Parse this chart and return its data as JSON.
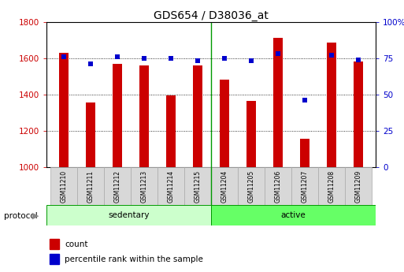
{
  "title": "GDS654 / D38036_at",
  "samples": [
    "GSM11210",
    "GSM11211",
    "GSM11212",
    "GSM11213",
    "GSM11214",
    "GSM11215",
    "GSM11204",
    "GSM11205",
    "GSM11206",
    "GSM11207",
    "GSM11208",
    "GSM11209"
  ],
  "counts": [
    1630,
    1355,
    1570,
    1560,
    1395,
    1560,
    1480,
    1365,
    1710,
    1155,
    1685,
    1580
  ],
  "percentile": [
    76,
    71,
    76,
    75,
    75,
    73,
    75,
    73,
    78,
    46,
    77,
    74
  ],
  "bar_color": "#cc0000",
  "dot_color": "#0000cc",
  "sedentary_color": "#ccffcc",
  "active_color": "#66ff66",
  "separator_color": "#009900",
  "ylim_left": [
    1000,
    1800
  ],
  "ylim_right": [
    0,
    100
  ],
  "yticks_left": [
    1000,
    1200,
    1400,
    1600,
    1800
  ],
  "yticks_right": [
    0,
    25,
    50,
    75,
    100
  ],
  "ytick_labels_right": [
    "0",
    "25",
    "50",
    "75",
    "100%"
  ],
  "bar_width": 0.35,
  "title_fontsize": 10,
  "tick_fontsize": 7.5,
  "label_fontsize": 8,
  "protocol_label": "protocol",
  "legend_count_label": "count",
  "legend_percentile_label": "percentile rank within the sample",
  "n_sedentary": 6,
  "n_total": 12
}
